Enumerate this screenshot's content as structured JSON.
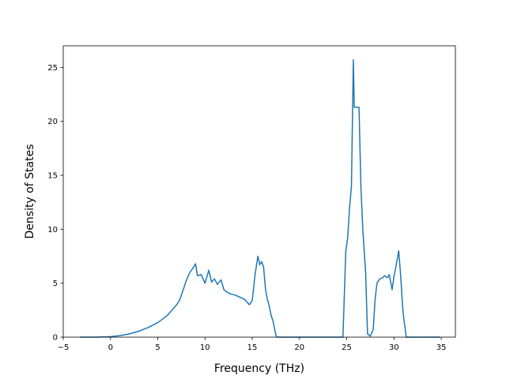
{
  "chart_data": {
    "type": "line",
    "xlabel": "Frequency (THz)",
    "ylabel": "Density of States",
    "xlim": [
      -5,
      36.5
    ],
    "ylim": [
      0,
      27
    ],
    "xticks": [
      -5,
      0,
      5,
      10,
      15,
      20,
      25,
      30,
      35
    ],
    "yticks": [
      0,
      5,
      10,
      15,
      20,
      25
    ],
    "grid": false,
    "colors": {
      "series": "#1f77b4"
    },
    "series": [
      {
        "x": [
          -3.2,
          -1.5,
          0.0,
          1.0,
          2.0,
          3.0,
          4.0,
          5.0,
          6.0,
          6.5,
          7.0,
          7.3,
          7.7,
          8.0,
          8.4,
          8.8,
          9.0,
          9.2,
          9.6,
          10.0,
          10.4,
          10.7,
          11.0,
          11.3,
          11.7,
          12.0,
          12.3,
          12.7,
          13.2,
          13.7,
          14.2,
          14.7,
          15.0,
          15.3,
          15.6,
          15.8,
          16.0,
          16.2,
          16.4,
          16.6,
          16.8,
          17.0,
          17.2,
          17.5,
          17.6,
          20.0,
          24.0,
          24.6,
          24.9,
          25.1,
          25.3,
          25.5,
          25.7,
          25.8,
          26.0,
          26.3,
          26.5,
          26.7,
          27.0,
          27.2,
          27.5,
          27.8,
          28.0,
          28.2,
          28.5,
          28.8,
          29.0,
          29.3,
          29.5,
          29.8,
          30.0,
          30.3,
          30.5,
          30.7,
          30.9,
          31.0,
          31.3,
          31.5,
          33.0,
          34.8
        ],
        "y": [
          0.0,
          0.0,
          0.05,
          0.15,
          0.3,
          0.55,
          0.9,
          1.35,
          2.0,
          2.5,
          3.0,
          3.4,
          4.4,
          5.2,
          6.0,
          6.5,
          6.8,
          5.7,
          5.8,
          5.0,
          6.2,
          5.1,
          5.4,
          4.9,
          5.3,
          4.4,
          4.2,
          4.0,
          3.9,
          3.7,
          3.5,
          3.0,
          3.4,
          5.8,
          7.5,
          6.7,
          7.0,
          6.5,
          4.5,
          3.5,
          2.9,
          2.0,
          1.5,
          0.2,
          0.0,
          0.0,
          0.0,
          0.0,
          8.0,
          9.2,
          12.0,
          14.0,
          25.7,
          21.3,
          21.3,
          21.3,
          14.0,
          10.0,
          6.0,
          0.3,
          0.1,
          0.7,
          3.5,
          5.0,
          5.4,
          5.5,
          5.7,
          5.5,
          5.8,
          4.4,
          5.6,
          7.0,
          8.0,
          5.8,
          3.0,
          2.0,
          0.0,
          0.0,
          0.0,
          0.0
        ]
      }
    ]
  }
}
